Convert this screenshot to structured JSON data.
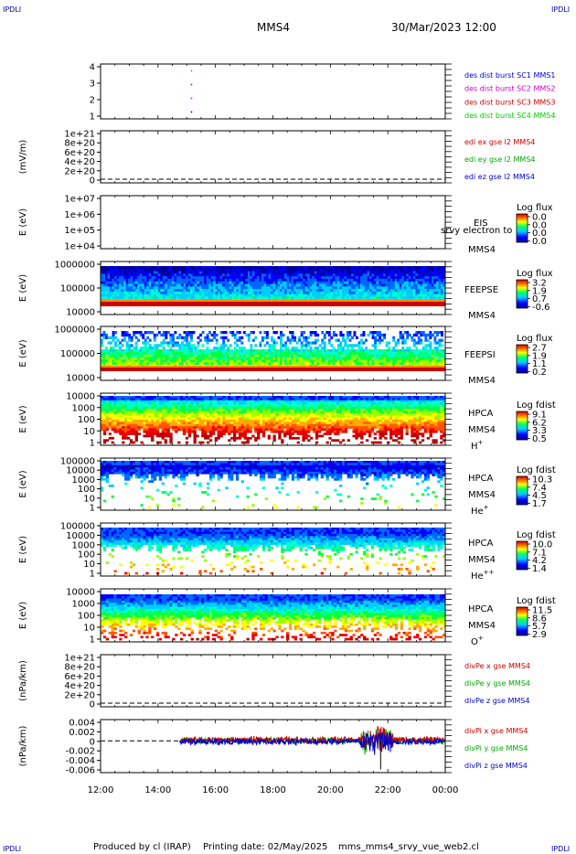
{
  "header": {
    "spacecraft": "MMS4",
    "datetime": "30/Mar/2023 12:00",
    "corner_tag": "IPDLI"
  },
  "footer": {
    "produced_by": "Produced by cl (IRAP)",
    "printing_date": "Printing date: 02/May/2025",
    "filename": "mms_mms4_srvy_vue_web2.cl"
  },
  "chart_data": {
    "type": "multi-panel time series",
    "x_ticks": [
      "12:00",
      "14:00",
      "16:00",
      "18:00",
      "20:00",
      "22:00",
      "00:00"
    ],
    "panels": [
      {
        "id": "burst",
        "type": "scatter",
        "ylabel": "",
        "y_ticks": [
          "4",
          "3",
          "2",
          "1"
        ],
        "y_range": [
          0.5,
          4.5
        ],
        "legend": [
          {
            "label": "des dist burst SC1 MMS1",
            "color": "#0000cc"
          },
          {
            "label": "des dist burst SC2 MMS2",
            "color": "#cc00cc"
          },
          {
            "label": "des dist burst SC3 MMS3",
            "color": "#cc0000"
          },
          {
            "label": "des dist burst SC4 MMS4",
            "color": "#00cc00"
          }
        ],
        "points": [
          {
            "time": "15:10",
            "y": 4,
            "series": "SC4"
          },
          {
            "time": "15:10",
            "y": 3,
            "series": "SC3"
          },
          {
            "time": "15:10",
            "y": 2,
            "series": "SC2"
          },
          {
            "time": "15:10",
            "y": 1,
            "series": "SC1"
          }
        ]
      },
      {
        "id": "edi",
        "type": "line",
        "ylabel": "(mV/m)",
        "y_ticks": [
          "1e+21",
          "8e+20",
          "6e+20",
          "4e+20",
          "2e+20",
          "0"
        ],
        "zero_line": true,
        "legend": [
          {
            "label": "edi ex gse l2 MMS4",
            "color": "#cc0000"
          },
          {
            "label": "edi ey gse l2 MMS4",
            "color": "#00aa00"
          },
          {
            "label": "edi ez gse l2 MMS4",
            "color": "#0000cc"
          }
        ]
      },
      {
        "id": "eis",
        "type": "heatmap",
        "ylabel": "E (eV)",
        "y_ticks": [
          "1e+07",
          "1e+06",
          "1e+05",
          "1e+04"
        ],
        "labels": [
          "EIS",
          "srvy electron to",
          "MMS4"
        ],
        "colorbar": {
          "title": "Log flux",
          "ticks": [
            "0.0",
            "0.0",
            "0.0",
            "0.0"
          ]
        },
        "empty": true
      },
      {
        "id": "feepse",
        "type": "heatmap",
        "ylabel": "E (eV)",
        "y_ticks": [
          "1000000",
          "100000",
          "10000"
        ],
        "labels": [
          "FEEPSE",
          "MMS4"
        ],
        "colorbar": {
          "title": "Log flux",
          "ticks": [
            "3.2",
            "1.9",
            "0.7",
            "-0.6"
          ]
        },
        "start_time": "12:00",
        "end_time": "00:00"
      },
      {
        "id": "feepsi",
        "type": "heatmap",
        "ylabel": "E (eV)",
        "y_ticks": [
          "1000000",
          "100000",
          "10000"
        ],
        "labels": [
          "FEEPSI",
          "MMS4"
        ],
        "colorbar": {
          "title": "Log flux",
          "ticks": [
            "2.7",
            "1.9",
            "1.1",
            "0.2"
          ]
        },
        "start_time": "12:00",
        "end_time": "00:00"
      },
      {
        "id": "hpca_h",
        "type": "heatmap",
        "ylabel": "E (eV)",
        "y_ticks": [
          "10000",
          "1000",
          "100",
          "10",
          "1"
        ],
        "labels": [
          "HPCA",
          "MMS4"
        ],
        "species": "H",
        "species_charge": "+",
        "colorbar": {
          "title": "Log fdist",
          "ticks": [
            "9.1",
            "6.2",
            "3.3",
            "0.5"
          ]
        }
      },
      {
        "id": "hpca_he1",
        "type": "heatmap",
        "ylabel": "E (eV)",
        "y_ticks": [
          "100000",
          "10000",
          "1000",
          "100",
          "10",
          "1"
        ],
        "labels": [
          "HPCA",
          "MMS4"
        ],
        "species": "He",
        "species_charge": "+",
        "colorbar": {
          "title": "Log fdist",
          "ticks": [
            "10.3",
            "7.4",
            "4.5",
            "1.7"
          ]
        }
      },
      {
        "id": "hpca_he2",
        "type": "heatmap",
        "ylabel": "E (eV)",
        "y_ticks": [
          "100000",
          "10000",
          "1000",
          "100",
          "10",
          "1"
        ],
        "labels": [
          "HPCA",
          "MMS4"
        ],
        "species": "He",
        "species_charge": "++",
        "colorbar": {
          "title": "Log fdist",
          "ticks": [
            "10.0",
            "7.1",
            "4.2",
            "1.4"
          ]
        }
      },
      {
        "id": "hpca_o",
        "type": "heatmap",
        "ylabel": "E (eV)",
        "y_ticks": [
          "10000",
          "1000",
          "100",
          "10",
          "1"
        ],
        "labels": [
          "HPCA",
          "MMS4"
        ],
        "species": "O",
        "species_charge": "+",
        "colorbar": {
          "title": "Log fdist",
          "ticks": [
            "11.5",
            "8.6",
            "5.7",
            "2.9"
          ]
        }
      },
      {
        "id": "divpe",
        "type": "line",
        "ylabel": "(nPa/km)",
        "y_ticks": [
          "1e+21",
          "8e+20",
          "6e+20",
          "4e+20",
          "2e+20",
          "0"
        ],
        "zero_line": true,
        "legend": [
          {
            "label": "divPe x gse MMS4",
            "color": "#cc0000"
          },
          {
            "label": "divPe y gse MMS4",
            "color": "#00aa00"
          },
          {
            "label": "divPe z gse MMS4",
            "color": "#0000cc"
          }
        ]
      },
      {
        "id": "divpi",
        "type": "line",
        "ylabel": "(nPa/km)",
        "y_ticks": [
          "0.004",
          "0.002",
          "0",
          "-0.002",
          "-0.004",
          "-0.006"
        ],
        "y_range": [
          -0.0072,
          0.0048
        ],
        "zero_line": true,
        "data_start": "14:45",
        "data_end": "00:00",
        "legend": [
          {
            "label": "divPi x gse MMS4",
            "color": "#cc0000"
          },
          {
            "label": "divPi y gse MMS4",
            "color": "#00aa00"
          },
          {
            "label": "divPi z gse MMS4",
            "color": "#0000cc"
          }
        ]
      }
    ]
  }
}
